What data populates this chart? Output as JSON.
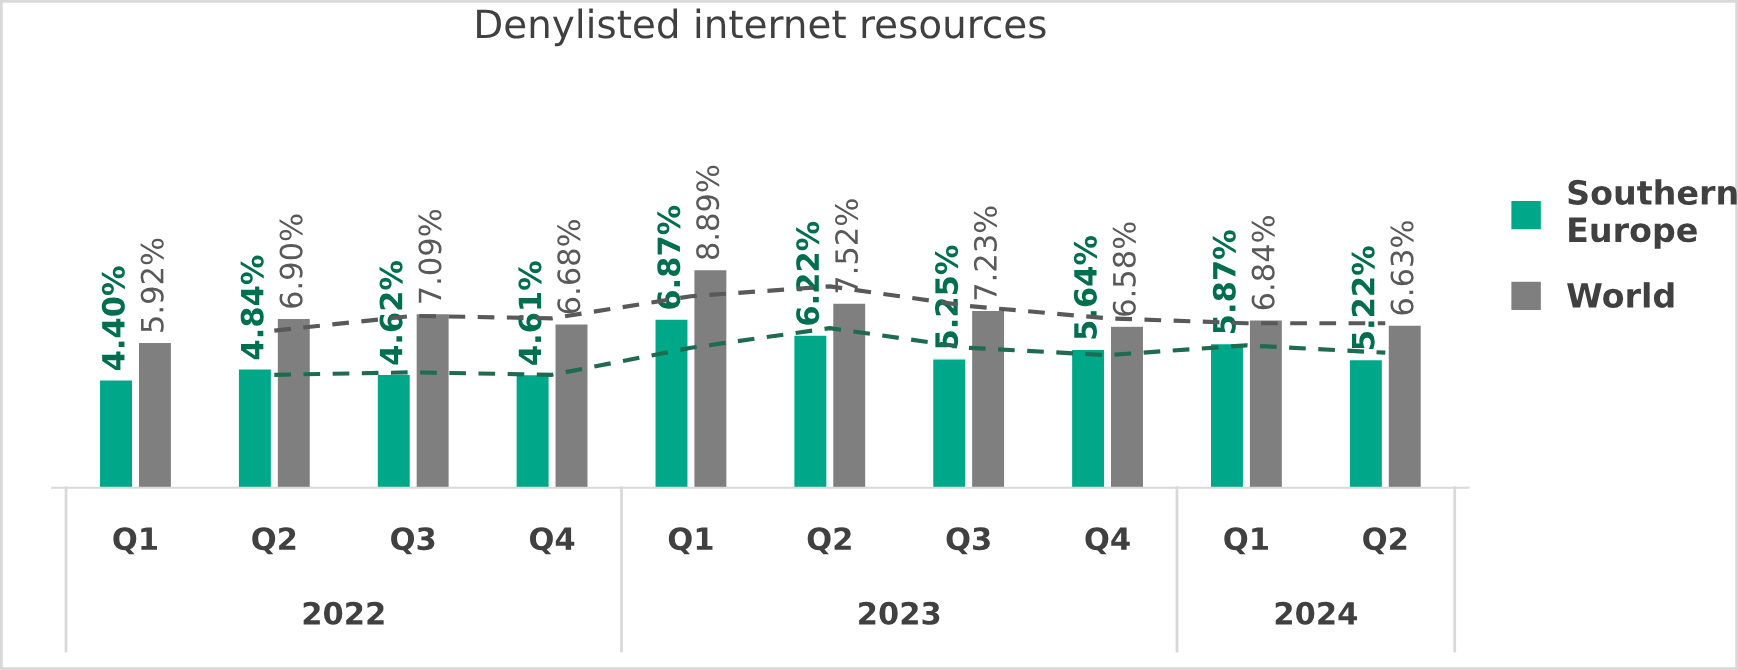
{
  "chart_data": {
    "type": "bar",
    "title": "Denylisted internet resources",
    "categories": [
      "Q1",
      "Q2",
      "Q3",
      "Q4",
      "Q1",
      "Q2",
      "Q3",
      "Q4",
      "Q1",
      "Q2"
    ],
    "series": [
      {
        "name": "Southern Europe",
        "color": "#00a88a",
        "values": [
          4.4,
          4.84,
          4.62,
          4.61,
          6.87,
          6.22,
          5.25,
          5.64,
          5.87,
          5.22
        ],
        "value_labels": [
          "4.40%",
          "4.84%",
          "4.62%",
          "4.61%",
          "6.87%",
          "6.22%",
          "5.25%",
          "5.64%",
          "5.87%",
          "5.22%"
        ]
      },
      {
        "name": "World",
        "color": "#7f7f7f",
        "values": [
          5.92,
          6.9,
          7.09,
          6.68,
          8.89,
          7.52,
          7.23,
          6.58,
          6.84,
          6.63
        ],
        "value_labels": [
          "5.92%",
          "6.90%",
          "7.09%",
          "6.68%",
          "8.89%",
          "7.52%",
          "7.23%",
          "6.58%",
          "6.84%",
          "6.63%"
        ]
      },
      {
        "type": "line",
        "color": "#1e6b50",
        "line_style": "dashed",
        "values": [
          null,
          4.6,
          4.7,
          4.6,
          5.7,
          6.5,
          5.7,
          5.4,
          5.8,
          5.5
        ]
      },
      {
        "type": "line",
        "color": "#595959",
        "line_style": "dashed",
        "values": [
          null,
          6.4,
          7.0,
          6.9,
          7.8,
          8.2,
          7.4,
          6.9,
          6.7,
          6.7
        ]
      }
    ],
    "annotations": [
      "2022",
      "2023",
      "2024"
    ],
    "legend": "right",
    "grid": false
  }
}
